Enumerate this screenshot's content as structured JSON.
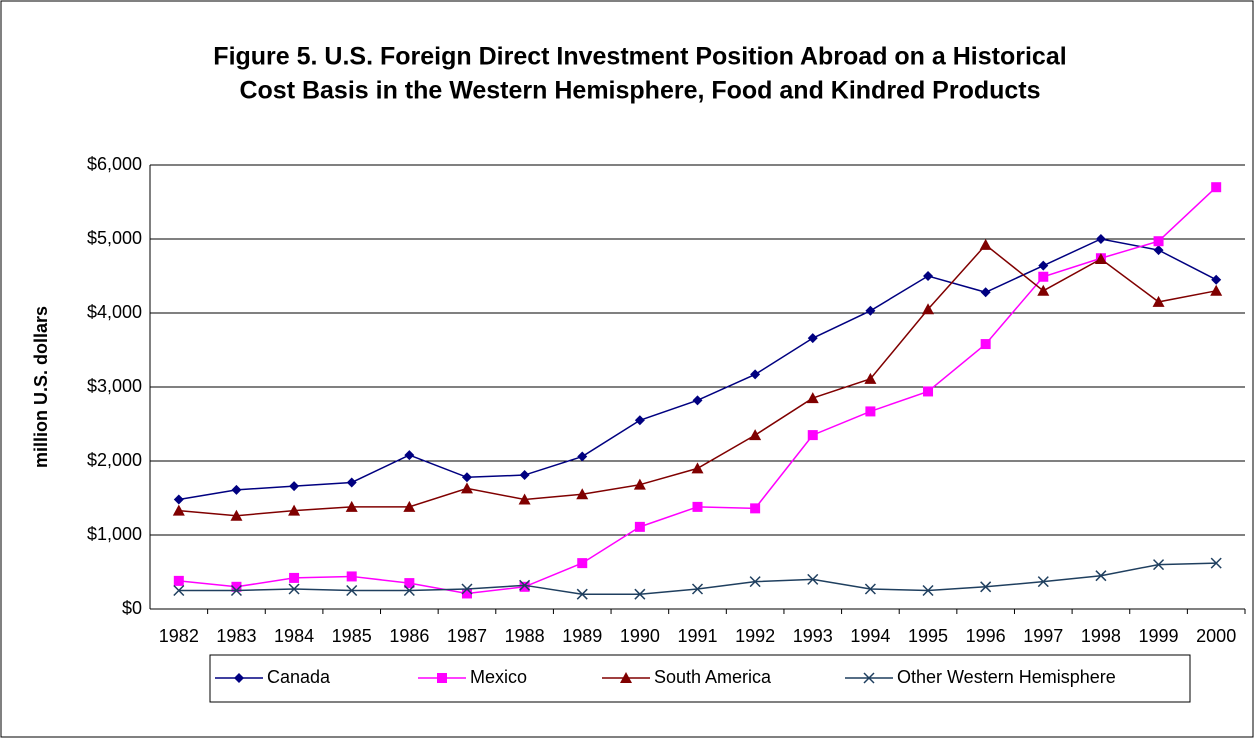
{
  "chart_data": {
    "type": "line",
    "title": [
      "Figure 5.  U.S. Foreign Direct Investment Position Abroad on a Historical",
      "Cost Basis in the Western Hemisphere, Food and Kindred Products"
    ],
    "ylabel": "million U.S. dollars",
    "categories": [
      "1982",
      "1983",
      "1984",
      "1985",
      "1986",
      "1987",
      "1988",
      "1989",
      "1990",
      "1991",
      "1992",
      "1993",
      "1994",
      "1995",
      "1996",
      "1997",
      "1998",
      "1999",
      "2000"
    ],
    "series": [
      {
        "name": "Canada",
        "color": "#000080",
        "marker": "diamond",
        "values": [
          1480,
          1610,
          1660,
          1710,
          2080,
          1780,
          1810,
          2060,
          2550,
          2820,
          3170,
          3660,
          4030,
          4500,
          4280,
          4640,
          5000,
          4850,
          4450
        ]
      },
      {
        "name": "Mexico",
        "color": "#FF00FF",
        "marker": "square",
        "values": [
          380,
          300,
          420,
          440,
          350,
          210,
          300,
          620,
          1110,
          1380,
          1360,
          2350,
          2670,
          2940,
          3580,
          4490,
          4740,
          4970,
          5700
        ]
      },
      {
        "name": "South America",
        "color": "#800000",
        "marker": "triangle",
        "values": [
          1330,
          1260,
          1330,
          1380,
          1380,
          1630,
          1480,
          1550,
          1680,
          1900,
          2350,
          2850,
          3110,
          4050,
          4920,
          4300,
          4730,
          4150,
          4300
        ]
      },
      {
        "name": "Other Western Hemisphere",
        "color": "#1F3F5F",
        "marker": "x",
        "values": [
          250,
          250,
          270,
          250,
          250,
          270,
          320,
          200,
          200,
          270,
          370,
          400,
          270,
          250,
          300,
          370,
          450,
          600,
          620
        ]
      }
    ],
    "ylim": [
      0,
      6000
    ],
    "yticks": [
      {
        "value": 0,
        "label": "$0"
      },
      {
        "value": 1000,
        "label": "$1,000"
      },
      {
        "value": 2000,
        "label": "$2,000"
      },
      {
        "value": 3000,
        "label": "$3,000"
      },
      {
        "value": 4000,
        "label": "$4,000"
      },
      {
        "value": 5000,
        "label": "$5,000"
      },
      {
        "value": 6000,
        "label": "$6,000"
      }
    ],
    "grid": true,
    "legend": "bottom"
  }
}
